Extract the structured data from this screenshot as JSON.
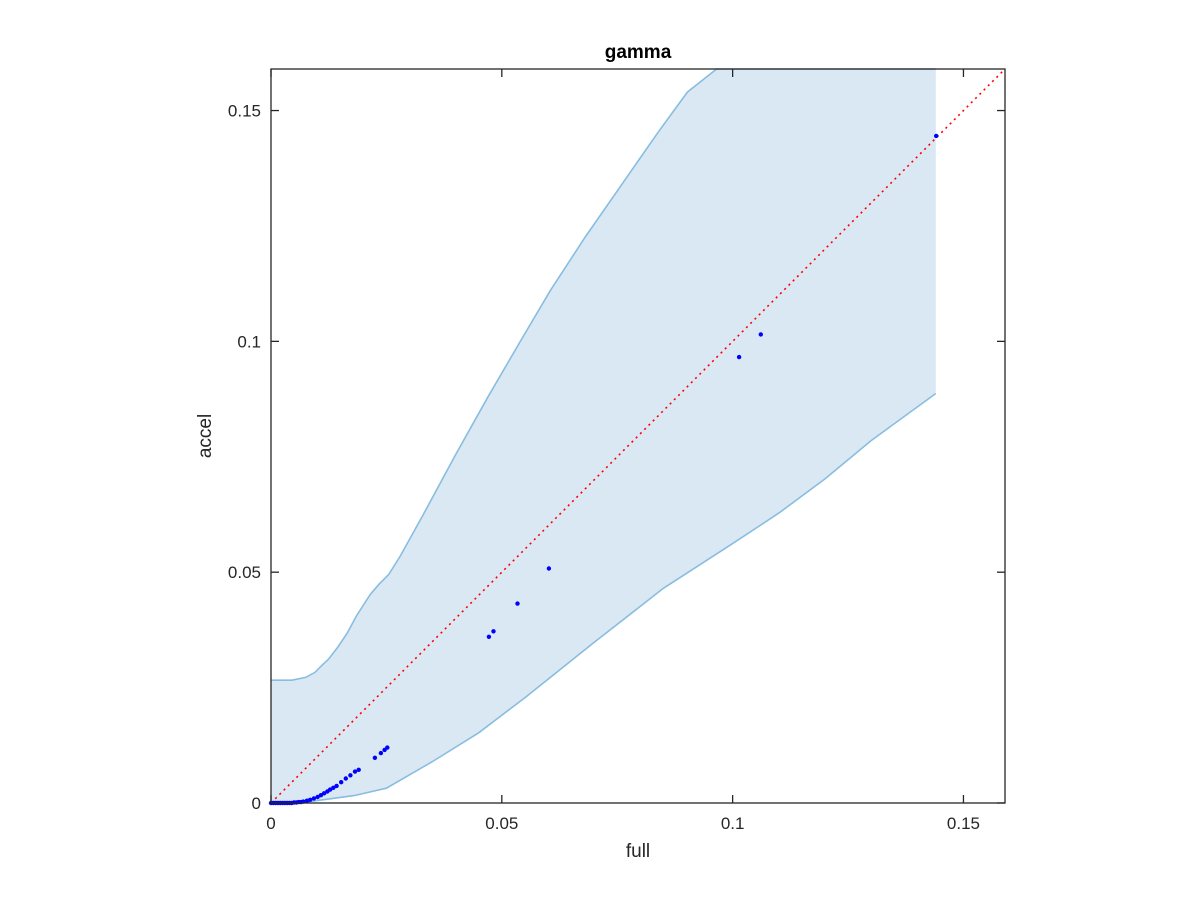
{
  "chart_data": {
    "type": "scatter",
    "title": "gamma",
    "xlabel": "full",
    "ylabel": "accel",
    "xlim": [
      0,
      0.159
    ],
    "ylim": [
      0,
      0.159
    ],
    "xticks": [
      0,
      0.05,
      0.1,
      0.15
    ],
    "xtick_labels": [
      "0",
      "0.05",
      "0.1",
      "0.15"
    ],
    "yticks": [
      0,
      0.05,
      0.1,
      0.15
    ],
    "ytick_labels": [
      "0",
      "0.05",
      "0.1",
      "0.15"
    ],
    "grid": false,
    "colors": {
      "points": "#0000ff",
      "band_fill": "#dae8f4",
      "band_edge": "#88bde0",
      "reference_line": "#ff0000",
      "axes": "#262626"
    },
    "reference_line": {
      "style": "dotted",
      "x": [
        0,
        0.159
      ],
      "y": [
        0,
        0.159
      ]
    },
    "band": {
      "upper": {
        "x": [
          0,
          0.0045,
          0.0075,
          0.0095,
          0.011,
          0.0125,
          0.0145,
          0.0165,
          0.0185,
          0.0215,
          0.0235,
          0.0255,
          0.028,
          0.033,
          0.04,
          0.047,
          0.054,
          0.0605,
          0.068,
          0.076,
          0.084,
          0.0902,
          0.0965,
          0.144
        ],
        "y": [
          0.0266,
          0.0266,
          0.0272,
          0.0283,
          0.0298,
          0.0312,
          0.0338,
          0.0368,
          0.0405,
          0.0452,
          0.0475,
          0.0495,
          0.0535,
          0.0625,
          0.0755,
          0.088,
          0.1,
          0.111,
          0.1225,
          0.134,
          0.1455,
          0.154,
          0.159,
          0.159
        ]
      },
      "lower": {
        "x": [
          0,
          0.006,
          0.012,
          0.018,
          0.025,
          0.035,
          0.045,
          0.055,
          0.07,
          0.085,
          0.1,
          0.11,
          0.12,
          0.13,
          0.144
        ],
        "y": [
          0,
          0,
          0.0008,
          0.0016,
          0.0032,
          0.009,
          0.0152,
          0.0228,
          0.0348,
          0.0465,
          0.0562,
          0.0628,
          0.0702,
          0.0785,
          0.0887
        ]
      }
    },
    "series": [
      {
        "x": [
          0,
          0.0005,
          0.001,
          0.0015,
          0.002,
          0.0025,
          0.003,
          0.0035,
          0.004,
          0.0045,
          0.005,
          0.0055,
          0.006,
          0.0065,
          0.007,
          0.0078,
          0.0085,
          0.0093,
          0.0101,
          0.0108,
          0.0115,
          0.0122,
          0.0128,
          0.0135,
          0.0142,
          0.0152,
          0.0162,
          0.0172,
          0.0182,
          0.019,
          0.0225,
          0.0238,
          0.0246,
          0.0252,
          0.0472,
          0.0482,
          0.0534,
          0.0602,
          0.1014,
          0.1061,
          0.1441
        ],
        "y": [
          0.0,
          0.0,
          0.0,
          0.0,
          0.0,
          0.0,
          0.0,
          0.0,
          0.0,
          0.0,
          0.0001,
          0.0001,
          0.0002,
          0.0002,
          0.0003,
          0.0005,
          0.0007,
          0.001,
          0.0013,
          0.0017,
          0.0021,
          0.0025,
          0.0029,
          0.0033,
          0.0037,
          0.0045,
          0.0053,
          0.006,
          0.0068,
          0.0072,
          0.0098,
          0.0108,
          0.0115,
          0.012,
          0.036,
          0.0372,
          0.0432,
          0.0508,
          0.0966,
          0.1015,
          0.1445
        ]
      }
    ]
  }
}
